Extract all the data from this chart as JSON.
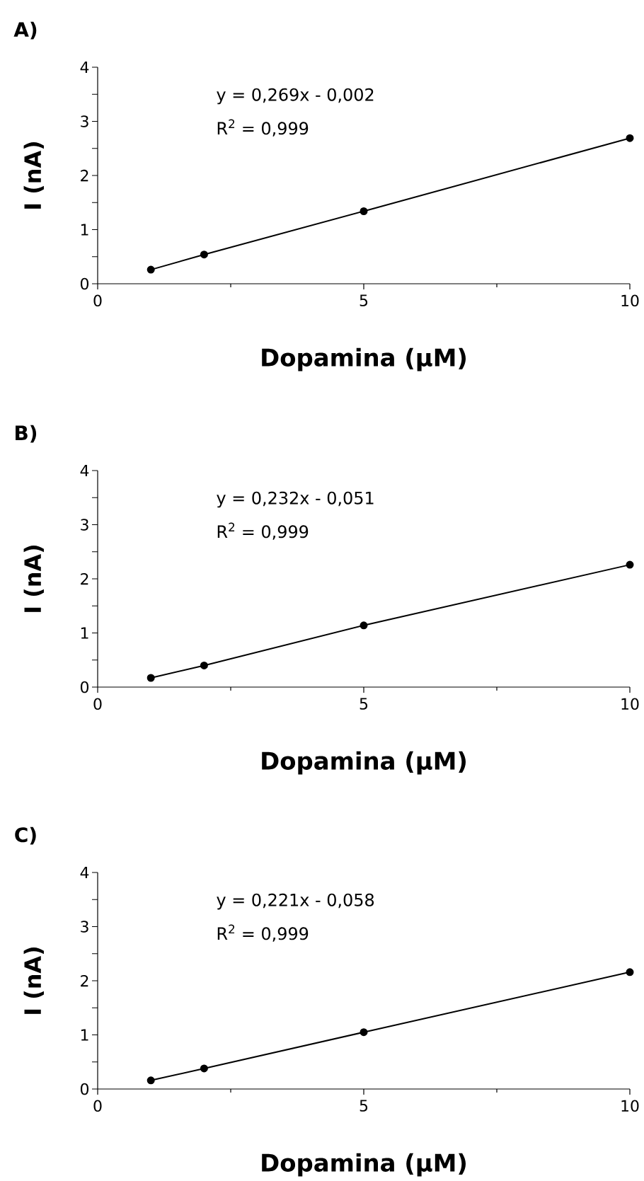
{
  "chart_data": [
    {
      "type": "line",
      "title": "A)",
      "xlabel": "Dopamina (µM)",
      "ylabel": "I (nA)",
      "annotations": [
        "y = 0,269x - 0,002",
        "R$^{2}$ = 0,999"
      ],
      "x": [
        1,
        2,
        5,
        10
      ],
      "values": [
        0.26,
        0.54,
        1.34,
        2.69
      ],
      "color": "#000000",
      "marker": "circle",
      "line_style": "solid",
      "xlim": [
        0,
        10
      ],
      "ylim": [
        0,
        4
      ],
      "xticks": [
        0,
        5,
        10
      ],
      "yticks": [
        0,
        {
          "value": 0.5,
          "label": null
        },
        1,
        {
          "value": 1.5,
          "label": null
        },
        2,
        {
          "value": 2.5,
          "label": null
        },
        3,
        {
          "value": 3.5,
          "label": null
        },
        4
      ]
    },
    {
      "type": "line",
      "title": "B)",
      "xlabel": "Dopamina (µM)",
      "ylabel": "I (nA)",
      "annotations": [
        "y = 0,232x - 0,051",
        "R$^{2}$ = 0,999"
      ],
      "x": [
        1,
        2,
        5,
        10
      ],
      "values": [
        0.17,
        0.4,
        1.14,
        2.26
      ],
      "color": "#000000",
      "marker": "circle",
      "line_style": "solid",
      "xlim": [
        0,
        10
      ],
      "ylim": [
        0,
        4
      ],
      "xticks": [
        0,
        5,
        10
      ],
      "yticks": [
        0,
        {
          "value": 0.5,
          "label": null
        },
        1,
        {
          "value": 1.5,
          "label": null
        },
        2,
        {
          "value": 2.5,
          "label": null
        },
        3,
        {
          "value": 3.5,
          "label": null
        },
        4
      ]
    },
    {
      "type": "line",
      "title": "C)",
      "xlabel": "Dopamina (µM)",
      "ylabel": "I (nA)",
      "annotations": [
        "y = 0,221x - 0,058",
        "R$^{2}$ = 0,999"
      ],
      "x": [
        1,
        2,
        5,
        10
      ],
      "values": [
        0.16,
        0.38,
        1.05,
        2.16
      ],
      "color": "#000000",
      "marker": "circle",
      "line_style": "solid",
      "xlim": [
        0,
        10
      ],
      "ylim": [
        0,
        4
      ],
      "xticks": [
        0,
        5,
        10
      ],
      "yticks": [
        0,
        {
          "value": 0.5,
          "label": null
        },
        1,
        {
          "value": 1.5,
          "label": null
        },
        2,
        {
          "value": 2.5,
          "label": null
        },
        3,
        {
          "value": 3.5,
          "label": null
        },
        4
      ]
    }
  ]
}
